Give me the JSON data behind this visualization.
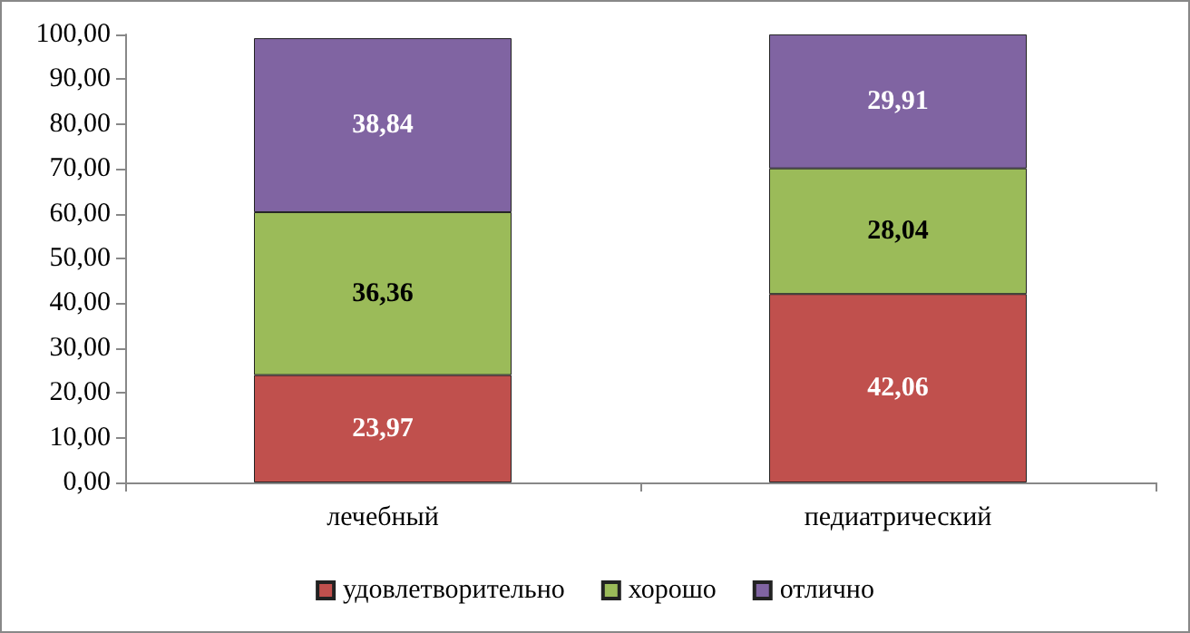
{
  "chart_data": {
    "type": "bar",
    "stacked": true,
    "categories": [
      "лечебный",
      "педиатрический"
    ],
    "series": [
      {
        "name": "удовлетворительно",
        "color": "#c0504d",
        "values": [
          23.97,
          42.06
        ],
        "value_labels": [
          "23,97",
          "42,06"
        ]
      },
      {
        "name": "хорошо",
        "color": "#9bbb59",
        "values": [
          36.36,
          28.04
        ],
        "value_labels": [
          "36,36",
          "28,04"
        ]
      },
      {
        "name": "отлично",
        "color": "#8064a2",
        "values": [
          38.84,
          29.91
        ],
        "value_labels": [
          "38,84",
          "29,91"
        ]
      }
    ],
    "ylim": [
      0,
      100
    ],
    "yticks": [
      {
        "value": 0,
        "label": "0,00"
      },
      {
        "value": 10,
        "label": "10,00"
      },
      {
        "value": 20,
        "label": "20,00"
      },
      {
        "value": 30,
        "label": "30,00"
      },
      {
        "value": 40,
        "label": "40,00"
      },
      {
        "value": 50,
        "label": "50,00"
      },
      {
        "value": 60,
        "label": "60,00"
      },
      {
        "value": 70,
        "label": "70,00"
      },
      {
        "value": 80,
        "label": "80,00"
      },
      {
        "value": 90,
        "label": "90,00"
      },
      {
        "value": 100,
        "label": "100,00"
      }
    ],
    "grid": false,
    "legend": "bottom"
  }
}
